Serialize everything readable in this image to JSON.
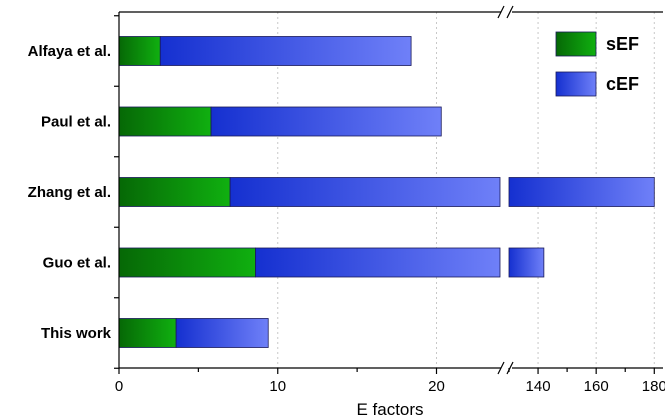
{
  "chart_data": {
    "type": "bar",
    "orientation": "horizontal",
    "stacked": true,
    "title": "",
    "xlabel": "E factors",
    "ylabel": "",
    "categories": [
      "Alfaya et al.",
      "Paul et al.",
      "Zhang et al.",
      "Guo et al.",
      "This work"
    ],
    "series": [
      {
        "name": "sEF",
        "values": [
          2.6,
          5.8,
          7.0,
          8.6,
          3.6
        ],
        "color": "#0a8a0a"
      },
      {
        "name": "cEF",
        "values": [
          15.8,
          14.5,
          173.0,
          133.4,
          5.8
        ],
        "color": "#4a5cf0"
      }
    ],
    "x_axis": {
      "broken": true,
      "segment1": {
        "range": [
          0,
          24
        ],
        "ticks": [
          0,
          10,
          20
        ]
      },
      "segment2": {
        "range": [
          130,
          183
        ],
        "ticks": [
          140,
          160,
          180
        ]
      }
    },
    "grid": {
      "x": true,
      "style": "dotted"
    },
    "legend": {
      "position": "top-right",
      "entries": [
        "sEF",
        "cEF"
      ]
    }
  }
}
